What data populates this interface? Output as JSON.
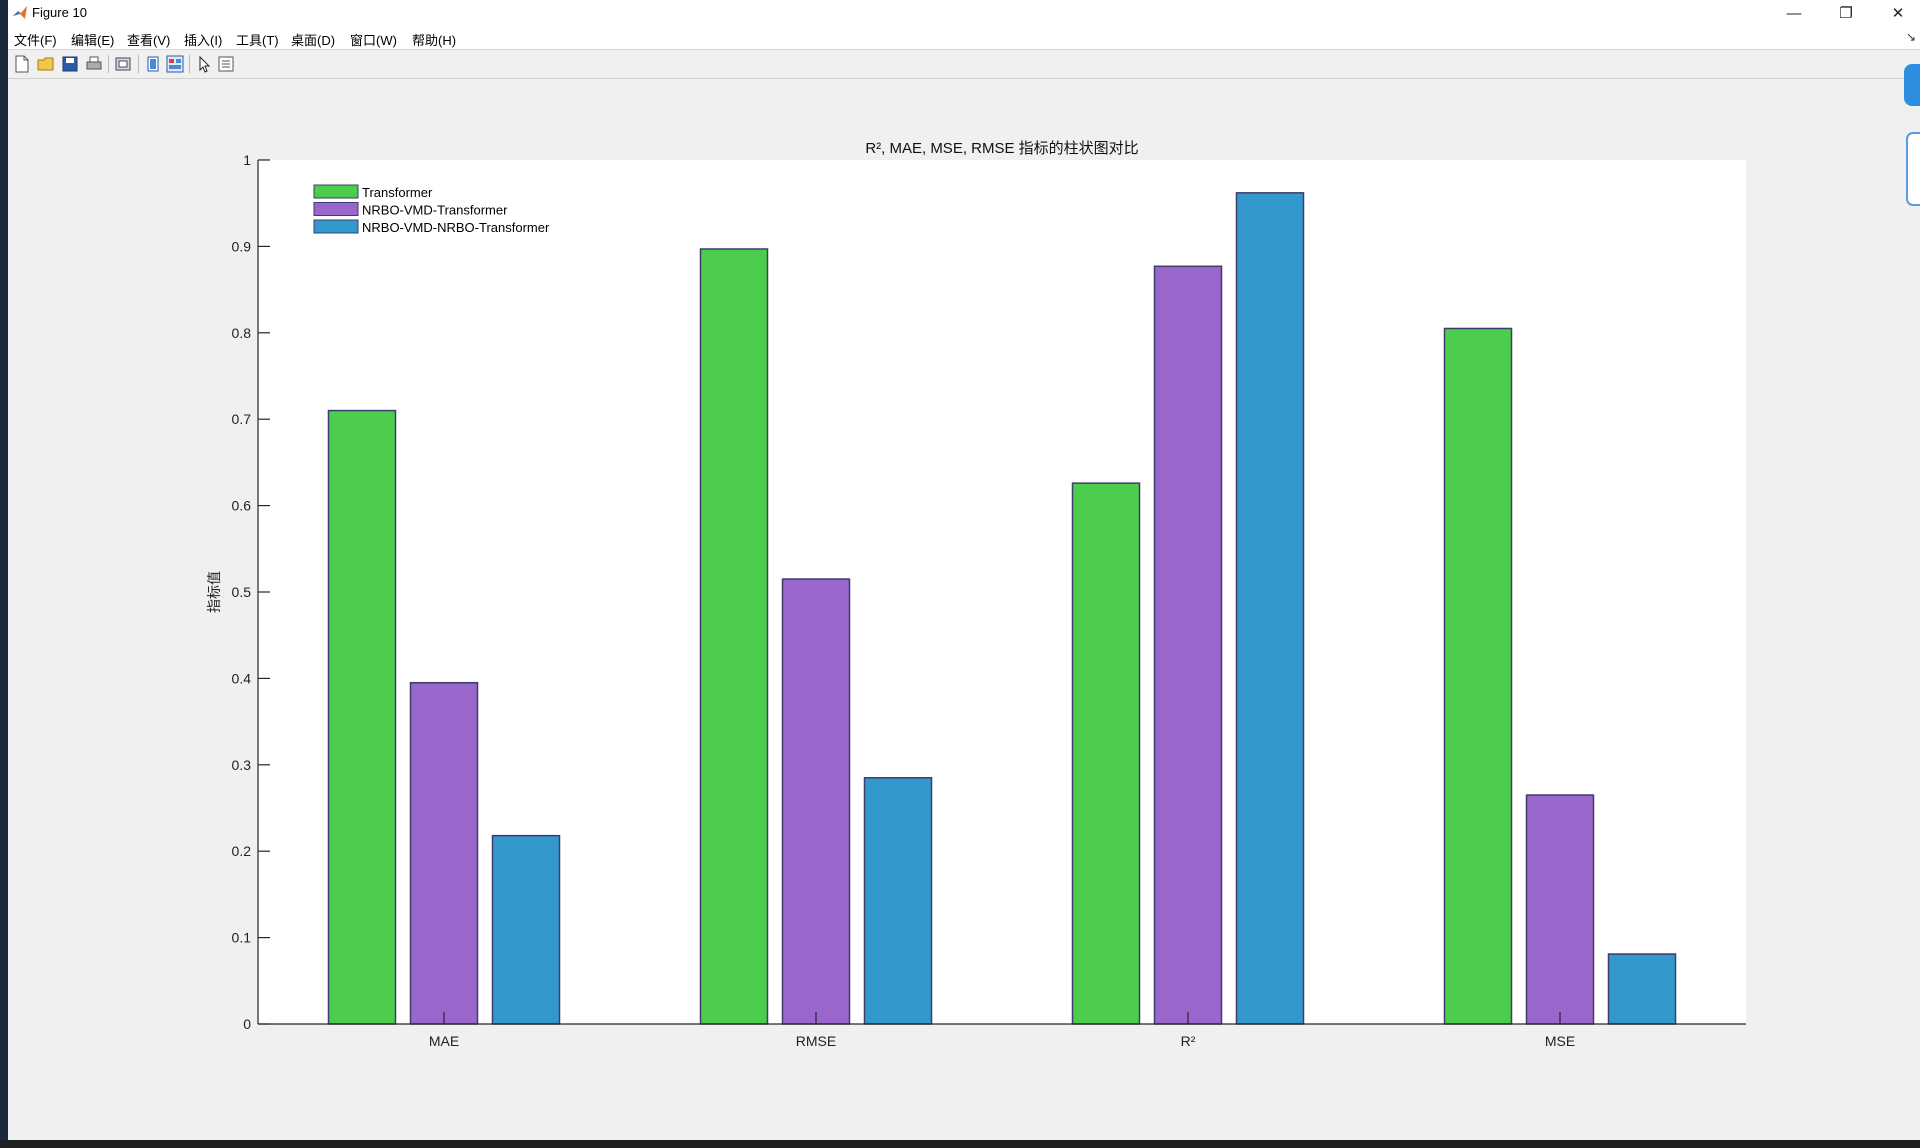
{
  "window": {
    "title": "Figure 10",
    "minimize": "—",
    "restore": "❐",
    "close": "✕"
  },
  "menu": {
    "items": [
      "文件(F)",
      "编辑(E)",
      "查看(V)",
      "插入(I)",
      "工具(T)",
      "桌面(D)",
      "窗口(W)",
      "帮助(H)"
    ],
    "overflow": "↘"
  },
  "toolbar": {
    "icons": [
      "new-figure-icon",
      "open-file-icon",
      "save-icon",
      "print-icon",
      "print-preview-icon",
      "hide-plot-tools-icon",
      "show-plot-tools-icon",
      "edit-plot-arrow-icon",
      "property-inspector-icon"
    ]
  },
  "colors": {
    "Transformer": "#4dcd4d",
    "NRBO-VMD-Transformer": "#9966cc",
    "NRBO-VMD-NRBO-Transformer": "#3399cc",
    "bar_edge": "#3d3d6b",
    "axes_bg": "#ffffff",
    "figure_bg": "#f0f0f0"
  },
  "chart_data": {
    "type": "bar",
    "title": "R², MAE, MSE, RMSE 指标的柱状图对比",
    "xlabel": "",
    "ylabel": "指标值",
    "categories": [
      "MAE",
      "RMSE",
      "R²",
      "MSE"
    ],
    "series": [
      {
        "name": "Transformer",
        "values": [
          0.71,
          0.897,
          0.626,
          0.805
        ]
      },
      {
        "name": "NRBO-VMD-Transformer",
        "values": [
          0.395,
          0.515,
          0.877,
          0.265
        ]
      },
      {
        "name": "NRBO-VMD-NRBO-Transformer",
        "values": [
          0.218,
          0.285,
          0.962,
          0.081
        ]
      }
    ],
    "ylim": [
      0,
      1
    ],
    "yticks": [
      "0",
      "0.1",
      "0.2",
      "0.3",
      "0.4",
      "0.5",
      "0.6",
      "0.7",
      "0.8",
      "0.9",
      "1"
    ],
    "grid": false,
    "legend_position": "top-left"
  }
}
